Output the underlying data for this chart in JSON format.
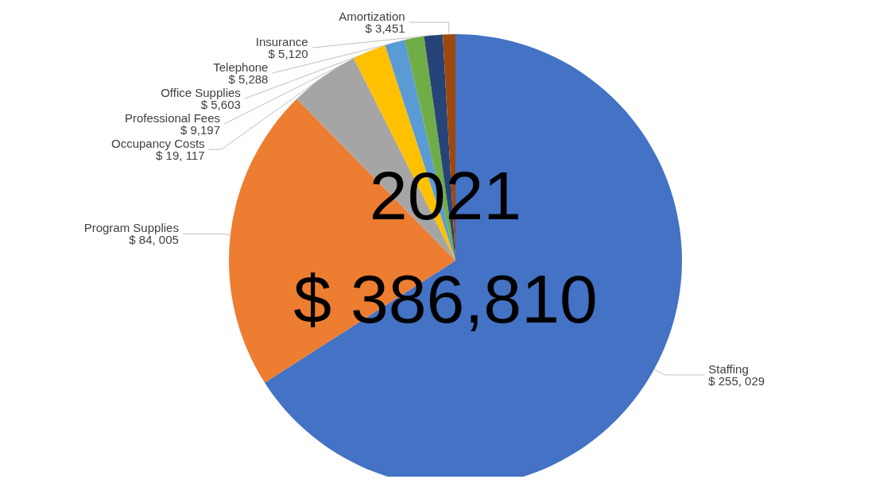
{
  "chart_data": {
    "type": "pie",
    "title": "2021",
    "subtitle": "$ 386,810",
    "categories": [
      "Staffing",
      "Program Supplies",
      "Occupancy Costs",
      "Professional Fees",
      "Office Supplies",
      "Telephone",
      "Insurance",
      "Amortization"
    ],
    "values": [
      255029,
      84005,
      19117,
      9197,
      5603,
      5288,
      5120,
      3451
    ],
    "value_labels": [
      "$ 255, 029",
      "$ 84, 005",
      "$ 19, 117",
      "$ 9,197",
      "$ 5,603",
      "$ 5,288",
      "$ 5,120",
      "$ 3,451"
    ],
    "colors": [
      "#4472c4",
      "#ed7d31",
      "#a5a5a5",
      "#ffc000",
      "#5b9bd5",
      "#70ad47",
      "#264478",
      "#9e480e"
    ],
    "legend": false
  }
}
